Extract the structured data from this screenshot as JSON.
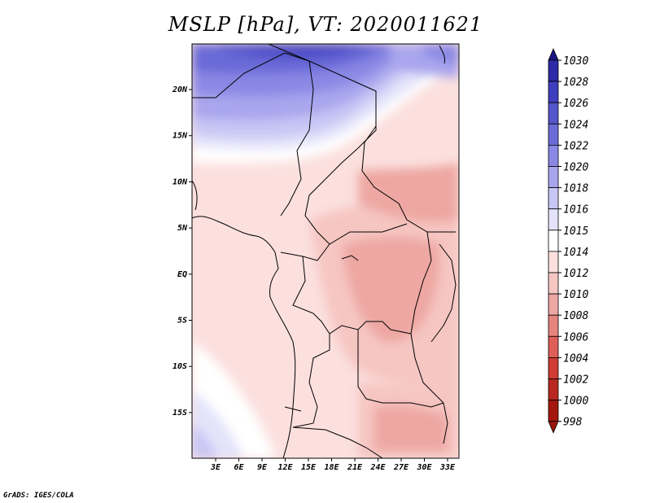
{
  "title": "MSLP [hPa], VT: 2020011621",
  "footer": "GrADS: IGES/COLA",
  "lon_labels": [
    "3E",
    "6E",
    "9E",
    "12E",
    "15E",
    "18E",
    "21E",
    "24E",
    "27E",
    "30E",
    "33E"
  ],
  "lat_labels": [
    "20N",
    "15N",
    "10N",
    "5N",
    "EQ",
    "5S",
    "10S",
    "15S"
  ],
  "colorbar": {
    "levels": [
      "1030",
      "1028",
      "1026",
      "1024",
      "1022",
      "1020",
      "1018",
      "1016",
      "1015",
      "1014",
      "1012",
      "1010",
      "1008",
      "1006",
      "1004",
      "1002",
      "1000",
      "998"
    ],
    "colors": [
      "#1f1a8c",
      "#2d2aa8",
      "#3f3fbe",
      "#5555cc",
      "#6b6bd8",
      "#8a88e4",
      "#a9a6ee",
      "#c8c6f4",
      "#e4e3fa",
      "#ffffff",
      "#fbe0de",
      "#f6c6c2",
      "#eea7a3",
      "#e6857f",
      "#de5f58",
      "#d03c34",
      "#b82820",
      "#a3170f"
    ],
    "arrow_top_color": "#1a1580",
    "arrow_bottom_color": "#9c140c"
  },
  "colors": {
    "map_background": "#fbe0de"
  }
}
